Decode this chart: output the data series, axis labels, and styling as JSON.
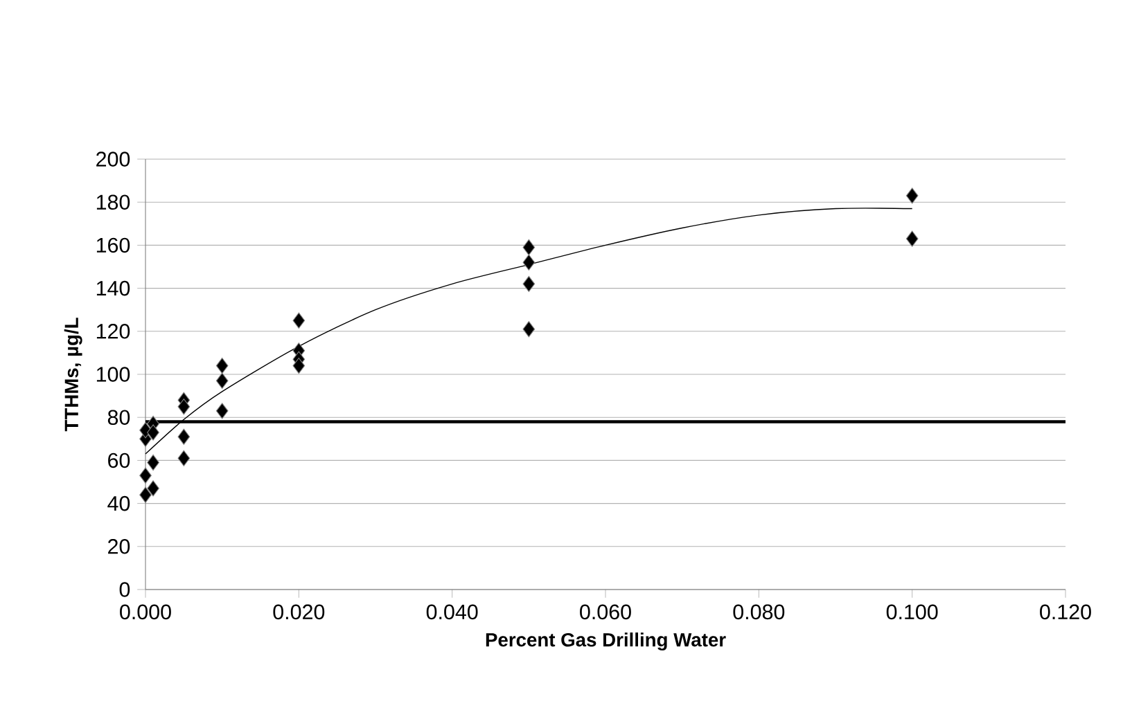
{
  "chart_data": {
    "type": "scatter",
    "xlabel": "Percent Gas Drilling Water",
    "ylabel": "TTHMs, µg/L",
    "xlim": [
      0,
      0.12
    ],
    "ylim": [
      0,
      200
    ],
    "xticks": [
      {
        "value": 0,
        "label": "0.000"
      },
      {
        "value": 0.02,
        "label": "0.020"
      },
      {
        "value": 0.04,
        "label": "0.040"
      },
      {
        "value": 0.06,
        "label": "0.060"
      },
      {
        "value": 0.08,
        "label": "0.080"
      },
      {
        "value": 0.1,
        "label": "0.100"
      },
      {
        "value": 0.12,
        "label": "0.120"
      }
    ],
    "yticks": [
      0,
      20,
      40,
      60,
      80,
      100,
      120,
      140,
      160,
      180,
      200
    ],
    "grid": "y",
    "marker": "diamond",
    "series": [
      {
        "color": "#000000",
        "x": [
          0,
          0,
          0,
          0,
          0.001,
          0.001,
          0.001,
          0.001,
          0.005,
          0.005,
          0.005,
          0.005,
          0.01,
          0.01,
          0.01,
          0.02,
          0.02,
          0.02,
          0.02,
          0.05,
          0.05,
          0.05,
          0.05,
          0.1,
          0.1
        ],
        "values": [
          70,
          74,
          53,
          44,
          77,
          73,
          59,
          47,
          88,
          85,
          71,
          61,
          104,
          97,
          83,
          125,
          111,
          107,
          104,
          159,
          152,
          142,
          121,
          183,
          163
        ]
      },
      {
        "type": "line",
        "color": "#000000",
        "marker": "none",
        "x": [
          0,
          0.005,
          0.01,
          0.02,
          0.03,
          0.04,
          0.05,
          0.06,
          0.07,
          0.08,
          0.09,
          0.1
        ],
        "values": [
          63,
          79,
          92,
          113,
          130,
          142,
          151,
          160,
          168,
          174,
          177,
          177
        ]
      }
    ],
    "ref_lines": [
      {
        "axis": "y",
        "value": 78,
        "color": "#000000"
      }
    ]
  }
}
